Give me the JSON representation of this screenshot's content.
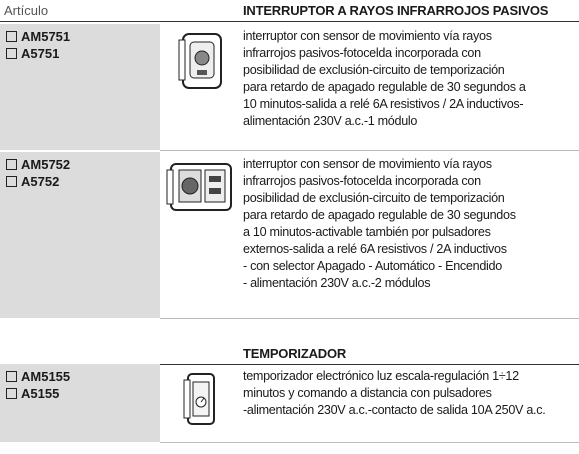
{
  "header": {
    "article_label": "Artículo"
  },
  "sections": [
    {
      "title": "INTERRUPTOR A RAYOS INFRARROJOS PASIVOS",
      "items": [
        {
          "codes": [
            "AM5751",
            "A5751"
          ],
          "description": [
            "interruptor con sensor de movimiento vía rayos",
            "infrarrojos pasivos-fotocelda incorporada con",
            "posibilidad de exclusión-circuito  de temporización",
            "para retardo de apagado regulable de 30 segundos a",
            "10 minutos-salida a relé 6A resistivos / 2A inductivos-",
            "alimentación 230V a.c.-1 módulo"
          ]
        },
        {
          "codes": [
            "AM5752",
            "A5752"
          ],
          "description": [
            "interruptor con sensor de movimiento vía rayos",
            "infrarrojos pasivos-fotocelda incorporada con",
            "posibilidad de exclusión-circuito de temporización",
            "para retardo de apagado regulable de 30 segundos",
            "a 10 minutos-activable también por pulsadores",
            "externos-salida a relé 6A resistivos / 2A inductivos",
            "- con selector Apagado - Automático - Encendido",
            "- alimentación 230V a.c.-2 módulos"
          ]
        }
      ]
    },
    {
      "title": "TEMPORIZADOR",
      "items": [
        {
          "codes": [
            "AM5155",
            "A5155"
          ],
          "description": [
            "temporizador electrónico luz escala-regulación 1÷12",
            "minutos y comando a distancia con pulsadores",
            "-alimentación 230V a.c.-contacto de salida 10A 250V a.c."
          ]
        }
      ]
    }
  ]
}
